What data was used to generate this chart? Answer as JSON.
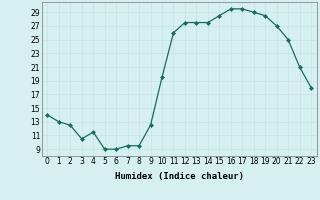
{
  "x": [
    0,
    1,
    2,
    3,
    4,
    5,
    6,
    7,
    8,
    9,
    10,
    11,
    12,
    13,
    14,
    15,
    16,
    17,
    18,
    19,
    20,
    21,
    22,
    23
  ],
  "y": [
    14,
    13,
    12.5,
    10.5,
    11.5,
    9,
    9,
    9.5,
    9.5,
    12.5,
    19.5,
    26,
    27.5,
    27.5,
    27.5,
    28.5,
    29.5,
    29.5,
    29,
    28.5,
    27,
    25,
    21,
    18
  ],
  "line_color": "#1a6b5a",
  "marker": "D",
  "marker_size": 2,
  "bg_color": "#d6f0f0",
  "grid_major_color": "#c4e4e4",
  "grid_minor_color": "#c4e4e4",
  "xlabel": "Humidex (Indice chaleur)",
  "xlim": [
    -0.5,
    23.5
  ],
  "ylim": [
    8,
    30.5
  ],
  "yticks": [
    9,
    11,
    13,
    15,
    17,
    19,
    21,
    23,
    25,
    27,
    29
  ],
  "xticks": [
    0,
    1,
    2,
    3,
    4,
    5,
    6,
    7,
    8,
    9,
    10,
    11,
    12,
    13,
    14,
    15,
    16,
    17,
    18,
    19,
    20,
    21,
    22,
    23
  ],
  "label_fontsize": 6.5,
  "tick_fontsize": 5.5,
  "linewidth": 0.9
}
